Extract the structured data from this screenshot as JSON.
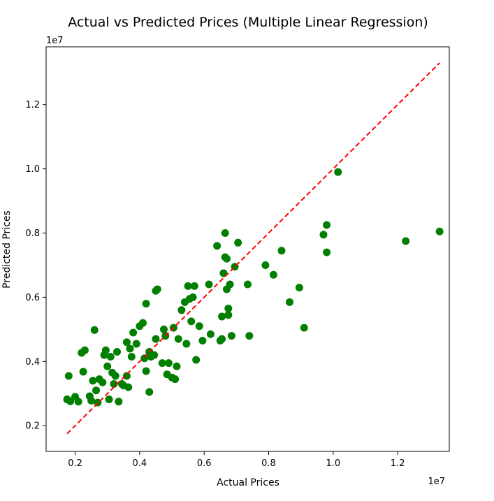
{
  "chart_data": {
    "type": "scatter",
    "title": "Actual vs Predicted Prices (Multiple Linear Regression)",
    "xlabel": "Actual Prices",
    "ylabel": "Predicted Prices",
    "x_offset_label": "1e7",
    "y_offset_label": "1e7",
    "xlim": [
      1.1,
      13.6
    ],
    "ylim": [
      1.2,
      13.8
    ],
    "x_ticks": [
      2,
      4,
      6,
      8,
      10,
      12
    ],
    "x_tick_labels": [
      "0.2",
      "0.4",
      "0.6",
      "0.8",
      "1.0",
      "1.2"
    ],
    "y_ticks": [
      2,
      4,
      6,
      8,
      10,
      12
    ],
    "y_tick_labels": [
      "0.2",
      "0.4",
      "0.6",
      "0.8",
      "1.0",
      "1.2"
    ],
    "grid": false,
    "point_color": "#007f00",
    "line_color": "#ff0000",
    "reference_line": {
      "style": "dashed",
      "from": [
        1.75,
        1.75
      ],
      "to": [
        13.3,
        13.3
      ]
    },
    "points": [
      [
        1.75,
        2.82
      ],
      [
        1.85,
        2.76
      ],
      [
        2.0,
        2.9
      ],
      [
        2.1,
        2.75
      ],
      [
        1.8,
        3.55
      ],
      [
        2.2,
        4.27
      ],
      [
        2.3,
        4.35
      ],
      [
        2.25,
        3.68
      ],
      [
        2.45,
        2.92
      ],
      [
        2.5,
        2.78
      ],
      [
        2.55,
        3.4
      ],
      [
        2.65,
        3.1
      ],
      [
        2.6,
        4.98
      ],
      [
        2.7,
        2.72
      ],
      [
        2.75,
        3.45
      ],
      [
        2.85,
        3.35
      ],
      [
        2.95,
        4.35
      ],
      [
        2.9,
        4.2
      ],
      [
        3.05,
        2.82
      ],
      [
        3.0,
        3.85
      ],
      [
        3.1,
        4.15
      ],
      [
        3.15,
        3.65
      ],
      [
        3.25,
        3.55
      ],
      [
        3.2,
        3.3
      ],
      [
        3.3,
        4.3
      ],
      [
        3.35,
        2.75
      ],
      [
        3.45,
        3.3
      ],
      [
        3.5,
        3.25
      ],
      [
        3.6,
        3.55
      ],
      [
        3.65,
        3.2
      ],
      [
        3.6,
        4.6
      ],
      [
        3.7,
        4.4
      ],
      [
        3.75,
        4.15
      ],
      [
        3.8,
        4.9
      ],
      [
        3.9,
        4.55
      ],
      [
        4.0,
        5.1
      ],
      [
        4.1,
        5.2
      ],
      [
        4.15,
        4.1
      ],
      [
        4.2,
        3.7
      ],
      [
        4.2,
        5.8
      ],
      [
        4.3,
        4.3
      ],
      [
        4.3,
        3.05
      ],
      [
        4.35,
        4.15
      ],
      [
        4.45,
        4.2
      ],
      [
        4.5,
        4.7
      ],
      [
        4.5,
        6.2
      ],
      [
        4.55,
        6.25
      ],
      [
        4.7,
        3.95
      ],
      [
        4.75,
        5.0
      ],
      [
        4.8,
        4.8
      ],
      [
        4.85,
        3.6
      ],
      [
        4.9,
        3.95
      ],
      [
        5.0,
        3.5
      ],
      [
        5.05,
        5.05
      ],
      [
        5.1,
        3.45
      ],
      [
        5.15,
        3.85
      ],
      [
        5.2,
        4.7
      ],
      [
        5.3,
        5.6
      ],
      [
        5.4,
        5.85
      ],
      [
        5.45,
        4.55
      ],
      [
        5.5,
        6.35
      ],
      [
        5.55,
        5.95
      ],
      [
        5.6,
        5.25
      ],
      [
        5.65,
        6.0
      ],
      [
        5.7,
        6.35
      ],
      [
        5.75,
        4.05
      ],
      [
        5.85,
        5.1
      ],
      [
        5.95,
        4.65
      ],
      [
        6.15,
        6.4
      ],
      [
        6.2,
        4.85
      ],
      [
        6.4,
        7.6
      ],
      [
        6.5,
        4.65
      ],
      [
        6.55,
        5.4
      ],
      [
        6.55,
        4.7
      ],
      [
        6.6,
        6.75
      ],
      [
        6.65,
        8.0
      ],
      [
        6.65,
        7.25
      ],
      [
        6.7,
        7.2
      ],
      [
        6.7,
        6.25
      ],
      [
        6.75,
        5.65
      ],
      [
        6.75,
        5.45
      ],
      [
        6.8,
        6.4
      ],
      [
        6.85,
        4.8
      ],
      [
        6.95,
        6.95
      ],
      [
        7.05,
        7.7
      ],
      [
        7.35,
        6.4
      ],
      [
        7.4,
        4.8
      ],
      [
        7.9,
        7.0
      ],
      [
        8.15,
        6.7
      ],
      [
        8.4,
        7.45
      ],
      [
        8.65,
        5.85
      ],
      [
        8.95,
        6.3
      ],
      [
        9.1,
        5.05
      ],
      [
        9.7,
        7.95
      ],
      [
        9.8,
        8.25
      ],
      [
        9.8,
        7.4
      ],
      [
        10.15,
        9.9
      ],
      [
        12.25,
        7.75
      ],
      [
        13.3,
        8.05
      ]
    ]
  }
}
